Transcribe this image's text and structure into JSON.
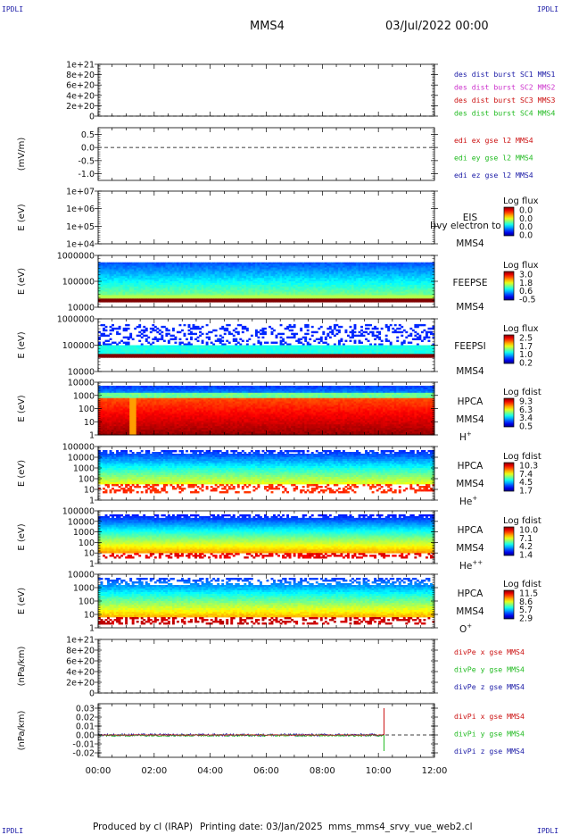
{
  "header": {
    "corner_tl": "IPDLI",
    "corner_tr": "IPDLI",
    "corner_bl": "IPDLI",
    "corner_br": "IPDLI",
    "spacecraft": "MMS4",
    "date": "03/Jul/2022 00:00"
  },
  "footer": {
    "produced": "Produced by cl (IRAP)",
    "printing": "Printing date: 03/Jan/2025",
    "script": "mms_mms4_srvy_vue_web2.cl"
  },
  "colors": {
    "blue": "#1a1aa6",
    "magenta": "#cc33cc",
    "red": "#cc1111",
    "green": "#22bb22"
  },
  "chart_data": [
    {
      "type": "line",
      "name": "des-dist-burst",
      "ylabel": "",
      "y_ticks": [
        "1e+21",
        "8e+20",
        "6e+20",
        "4e+20",
        "2e+20",
        "0"
      ],
      "ylim": [
        0,
        1e+21
      ],
      "dashed_zero": true,
      "legend": [
        {
          "text": "des dist burst SC1 MMS1",
          "color": "#1a1aa6"
        },
        {
          "text": "des dist burst SC2 MMS2",
          "color": "#cc33cc"
        },
        {
          "text": "des dist burst SC3 MMS3",
          "color": "#cc1111"
        },
        {
          "text": "des dist burst SC4 MMS4",
          "color": "#22bb22"
        }
      ],
      "series": []
    },
    {
      "type": "line",
      "name": "edi-e-field",
      "ylabel": "(mV/m)",
      "y_ticks": [
        "0.5",
        "0.0",
        "-0.5",
        "-1.0"
      ],
      "ylim": [
        -1.25,
        0.75
      ],
      "dashed_zero": true,
      "legend": [
        {
          "text": "edi ex gse l2 MMS4",
          "color": "#cc1111"
        },
        {
          "text": "edi ey gse l2 MMS4",
          "color": "#22bb22"
        },
        {
          "text": "edi ez gse l2 MMS4",
          "color": "#1a1aa6"
        }
      ],
      "series": []
    },
    {
      "type": "heatmap",
      "name": "eis",
      "ylabel": "E (eV)",
      "y_ticks": [
        "1e+07",
        "1e+06",
        "1e+05",
        "1e+04"
      ],
      "instrument": [
        "EIS",
        "MMS4"
      ],
      "overlay": "Ӏ)vy electron to",
      "colorbar": {
        "title": "Log flux",
        "ticks": [
          "0.0",
          "0.0",
          "0.0",
          "0.0"
        ]
      },
      "profile": "empty"
    },
    {
      "type": "heatmap",
      "name": "feeps-electron",
      "ylabel": "E (eV)",
      "y_ticks": [
        "1000000",
        "100000",
        "10000"
      ],
      "instrument": [
        "FEEPSE",
        "MMS4"
      ],
      "colorbar": {
        "title": "Log flux",
        "ticks": [
          "3.0",
          "1.8",
          "0.6",
          "-0.5"
        ]
      },
      "profile": "feepse"
    },
    {
      "type": "heatmap",
      "name": "feeps-ion",
      "ylabel": "E (eV)",
      "y_ticks": [
        "1000000",
        "100000",
        "10000"
      ],
      "instrument": [
        "FEEPSI",
        "MMS4"
      ],
      "colorbar": {
        "title": "Log flux",
        "ticks": [
          "2.5",
          "1.7",
          "1.0",
          "0.2"
        ]
      },
      "profile": "feepsi"
    },
    {
      "type": "heatmap",
      "name": "hpca-h",
      "ylabel": "E (eV)",
      "y_ticks": [
        "10000",
        "1000",
        "100",
        "10",
        "1"
      ],
      "instrument": [
        "HPCA",
        "MMS4"
      ],
      "species": "H",
      "species_sup": "+",
      "colorbar": {
        "title": "Log fdist",
        "ticks": [
          "9.3",
          "6.3",
          "3.4",
          "0.5"
        ]
      },
      "profile": "hplus"
    },
    {
      "type": "heatmap",
      "name": "hpca-he",
      "ylabel": "E (eV)",
      "y_ticks": [
        "100000",
        "10000",
        "1000",
        "100",
        "10",
        "1"
      ],
      "instrument": [
        "HPCA",
        "MMS4"
      ],
      "species": "He",
      "species_sup": "+",
      "colorbar": {
        "title": "Log fdist",
        "ticks": [
          "10.3",
          "7.4",
          "4.5",
          "1.7"
        ]
      },
      "profile": "heplus"
    },
    {
      "type": "heatmap",
      "name": "hpca-hepp",
      "ylabel": "E (eV)",
      "y_ticks": [
        "100000",
        "10000",
        "1000",
        "100",
        "10",
        "1"
      ],
      "instrument": [
        "HPCA",
        "MMS4"
      ],
      "species": "He",
      "species_sup": "++",
      "colorbar": {
        "title": "Log fdist",
        "ticks": [
          "10.0",
          "7.1",
          "4.2",
          "1.4"
        ]
      },
      "profile": "heplusplus"
    },
    {
      "type": "heatmap",
      "name": "hpca-o",
      "ylabel": "E (eV)",
      "y_ticks": [
        "10000",
        "1000",
        "100",
        "10",
        "1"
      ],
      "instrument": [
        "HPCA",
        "MMS4"
      ],
      "species": "O",
      "species_sup": "+",
      "colorbar": {
        "title": "Log fdist",
        "ticks": [
          "11.5",
          "8.6",
          "5.7",
          "2.9"
        ]
      },
      "profile": "oplus"
    },
    {
      "type": "line",
      "name": "div-pe",
      "ylabel": "(nPa/km)",
      "y_ticks": [
        "1e+21",
        "8e+20",
        "6e+20",
        "4e+20",
        "2e+20",
        "0"
      ],
      "ylim": [
        0,
        1e+21
      ],
      "dashed_zero": true,
      "legend": [
        {
          "text": "divPe x gse MMS4",
          "color": "#cc1111"
        },
        {
          "text": "divPe y gse MMS4",
          "color": "#22bb22"
        },
        {
          "text": "divPe z gse MMS4",
          "color": "#1a1aa6"
        }
      ],
      "series": []
    },
    {
      "type": "line",
      "name": "div-pi",
      "ylabel": "(nPa/km)",
      "y_ticks": [
        "0.03",
        "0.02",
        "0.01",
        "0.00",
        "-0.01",
        "-0.02"
      ],
      "ylim": [
        -0.025,
        0.035
      ],
      "dashed_zero": true,
      "data_end_hour": 10.2,
      "spike": {
        "x": 10.2,
        "red_max": 0.03,
        "green_min": -0.018
      },
      "legend": [
        {
          "text": "divPi x gse MMS4",
          "color": "#cc1111"
        },
        {
          "text": "divPi y gse MMS4",
          "color": "#22bb22"
        },
        {
          "text": "divPi z gse MMS4",
          "color": "#1a1aa6"
        }
      ],
      "series": [
        {
          "color": "#1a1aa6",
          "level": 0.0,
          "noise": 0.0015
        },
        {
          "color": "#22bb22",
          "level": -0.0005,
          "noise": 0.0012
        },
        {
          "color": "#cc1111",
          "level": 0.0,
          "noise": 0.0004
        }
      ]
    }
  ],
  "x_axis": {
    "ticks": [
      "00:00",
      "02:00",
      "04:00",
      "06:00",
      "08:00",
      "10:00",
      "12:00"
    ],
    "range_hours": [
      0,
      12
    ]
  }
}
